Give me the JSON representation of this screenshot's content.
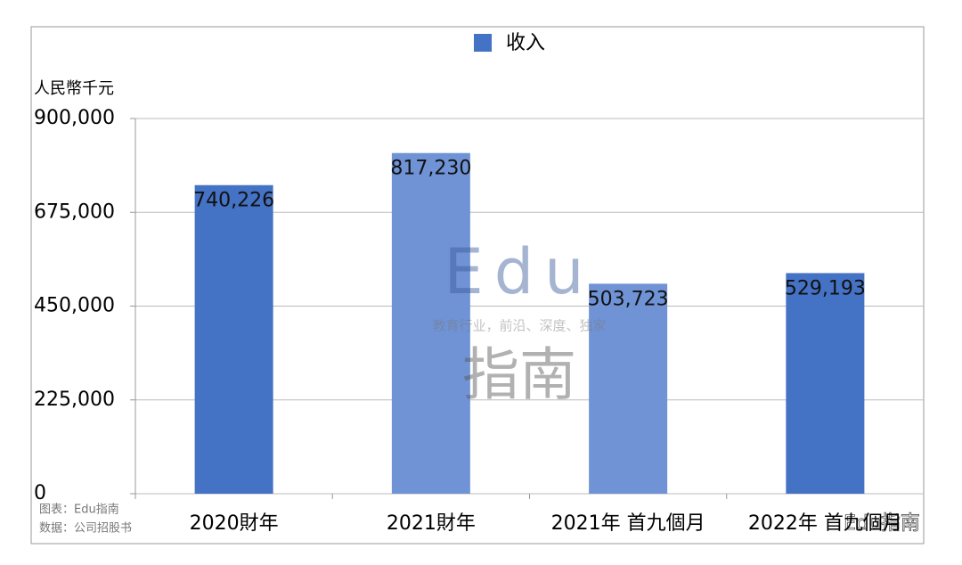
{
  "chart_data": {
    "type": "bar",
    "y_label": "人民幣千元",
    "categories": [
      "2020財年",
      "2021財年",
      "2021年 首九個月",
      "2022年 首九個月"
    ],
    "series": [
      {
        "name": "收入",
        "color": "#4472c4",
        "values": [
          740226,
          817230,
          503723,
          529193
        ],
        "value_labels": [
          "740,226",
          "817,230",
          "503,723",
          "529,193"
        ]
      }
    ],
    "bar_colors": [
      "#4472c4",
      "#7093d6",
      "#7093d6",
      "#4472c4"
    ],
    "ylim": [
      0,
      900000
    ],
    "yticks": [
      0,
      {
        "value": 225000,
        "label": "225,000"
      },
      {
        "value": 450000,
        "label": "450,000"
      },
      {
        "value": 675000,
        "label": "675,000"
      },
      {
        "value": 900000,
        "label": "900,000"
      }
    ],
    "grid": true,
    "legend": "top",
    "notes": [
      "图表：Edu指南",
      "数据：公司招股书"
    ],
    "watermark": [
      "Edu",
      "教育行业，前沿、深度、独家",
      "指南",
      "Edu指南"
    ]
  }
}
